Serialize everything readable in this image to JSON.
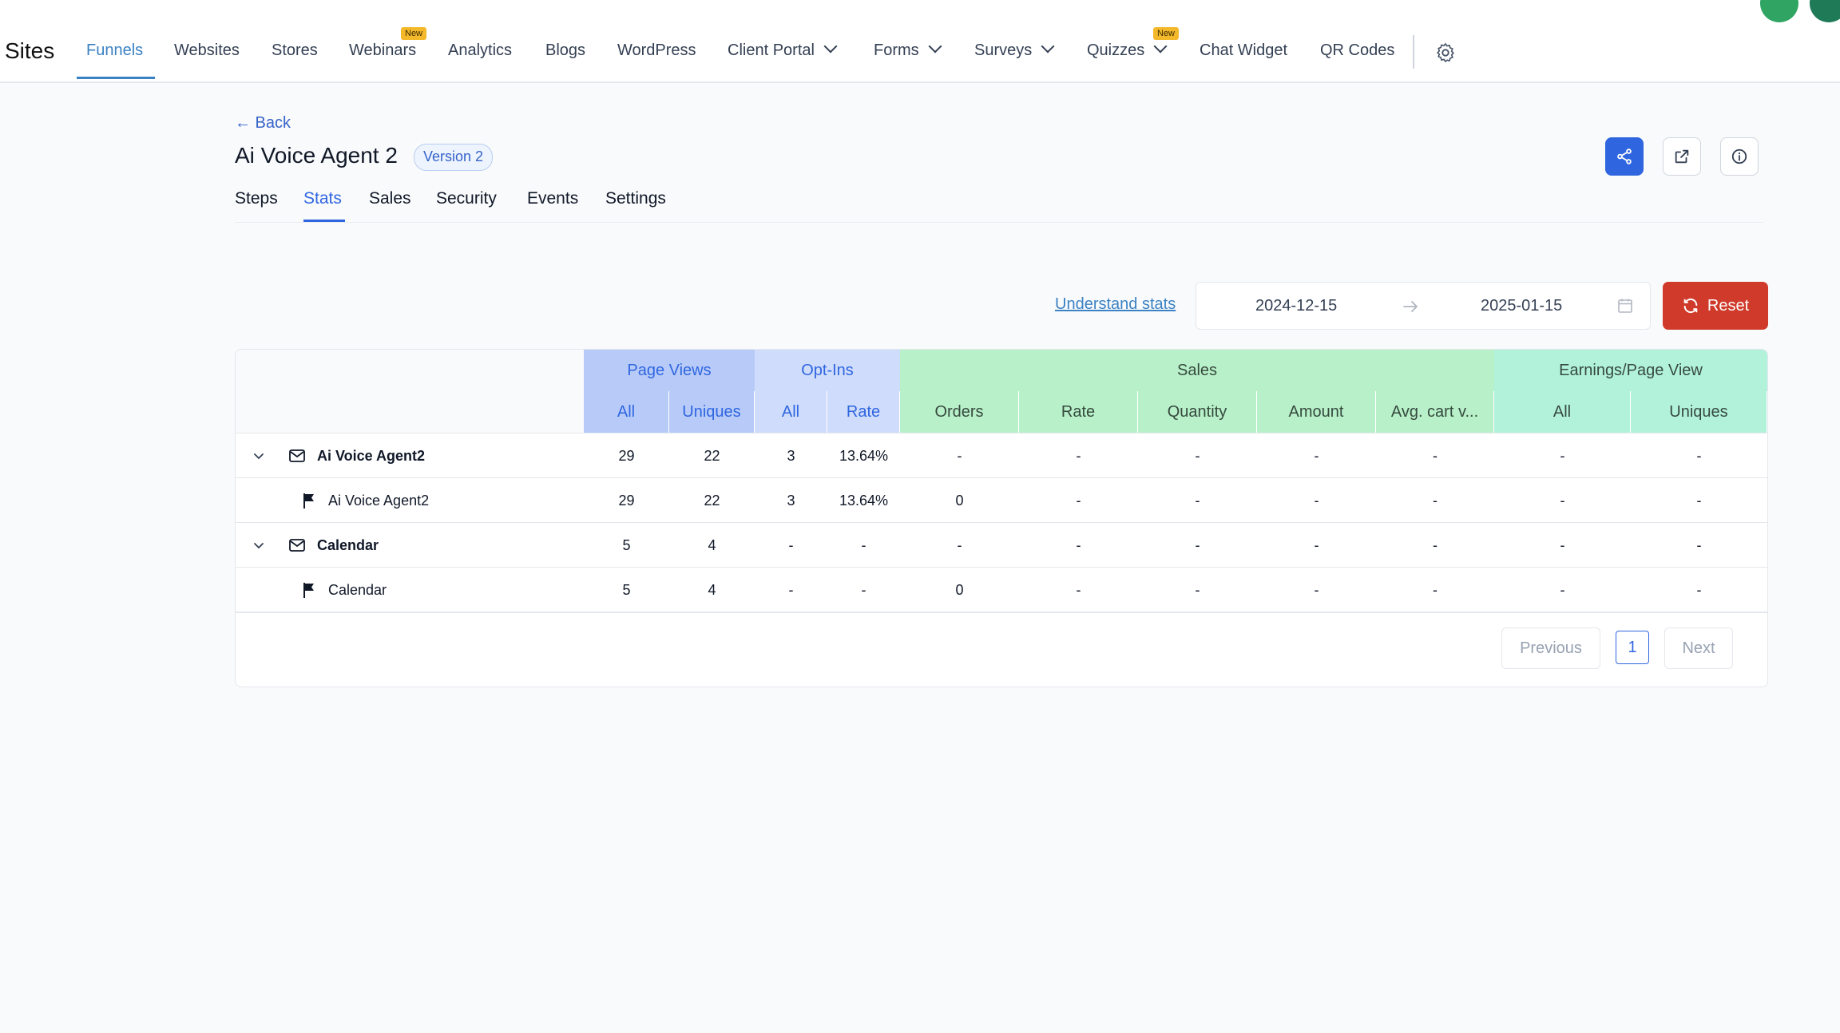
{
  "nav": {
    "brand": "Sites",
    "items": [
      "Funnels",
      "Websites",
      "Stores",
      "Webinars",
      "Analytics",
      "Blogs",
      "WordPress",
      "Client Portal",
      "Forms",
      "Surveys",
      "Quizzes",
      "Chat Widget",
      "QR Codes"
    ],
    "badge": "New",
    "icons": [
      "chevron-down-icon",
      "gear-icon"
    ]
  },
  "header": {
    "back": "← Back",
    "title": "Ai Voice Agent 2",
    "version": "Version 2",
    "tabs": [
      "Steps",
      "Stats",
      "Sales",
      "Security",
      "Events",
      "Settings"
    ],
    "active_tab": "Stats",
    "icons": [
      "share-icon",
      "external-link-icon",
      "info-icon"
    ]
  },
  "filters": {
    "understand_link": "Understand stats",
    "start_date": "2024-12-15",
    "end_date": "2025-01-15",
    "reset_label": "Reset"
  },
  "table": {
    "groups": [
      "Page Views",
      "Opt-Ins",
      "Sales",
      "Earnings/Page View"
    ],
    "subheaders": [
      "All",
      "Uniques",
      "All",
      "Rate",
      "Orders",
      "Rate",
      "Quantity",
      "Amount",
      "Avg. cart v...",
      "All",
      "Uniques"
    ],
    "rows": [
      {
        "label": "Ai Voice Agent2",
        "type": "group",
        "cells": [
          "29",
          "22",
          "3",
          "13.64%",
          "-",
          "-",
          "-",
          "-",
          "-",
          "-",
          "-"
        ]
      },
      {
        "label": "Ai Voice Agent2",
        "type": "step",
        "cells": [
          "29",
          "22",
          "3",
          "13.64%",
          "0",
          "-",
          "-",
          "-",
          "-",
          "-",
          "-"
        ]
      },
      {
        "label": "Calendar",
        "type": "group",
        "cells": [
          "5",
          "4",
          "-",
          "-",
          "-",
          "-",
          "-",
          "-",
          "-",
          "-",
          "-"
        ]
      },
      {
        "label": "Calendar",
        "type": "step",
        "cells": [
          "5",
          "4",
          "-",
          "-",
          "0",
          "-",
          "-",
          "-",
          "-",
          "-",
          "-"
        ]
      }
    ]
  },
  "pagination": {
    "previous": "Previous",
    "current": "1",
    "next": "Next"
  },
  "colors": {
    "primary": "#2f66e0",
    "reset": "#cf3a2b",
    "link": "#3b82c4",
    "page_views": "#b8cbf8",
    "opt_ins": "#cfdcfb",
    "sales": "#b8f0c9",
    "earnings": "#b2f2db"
  }
}
